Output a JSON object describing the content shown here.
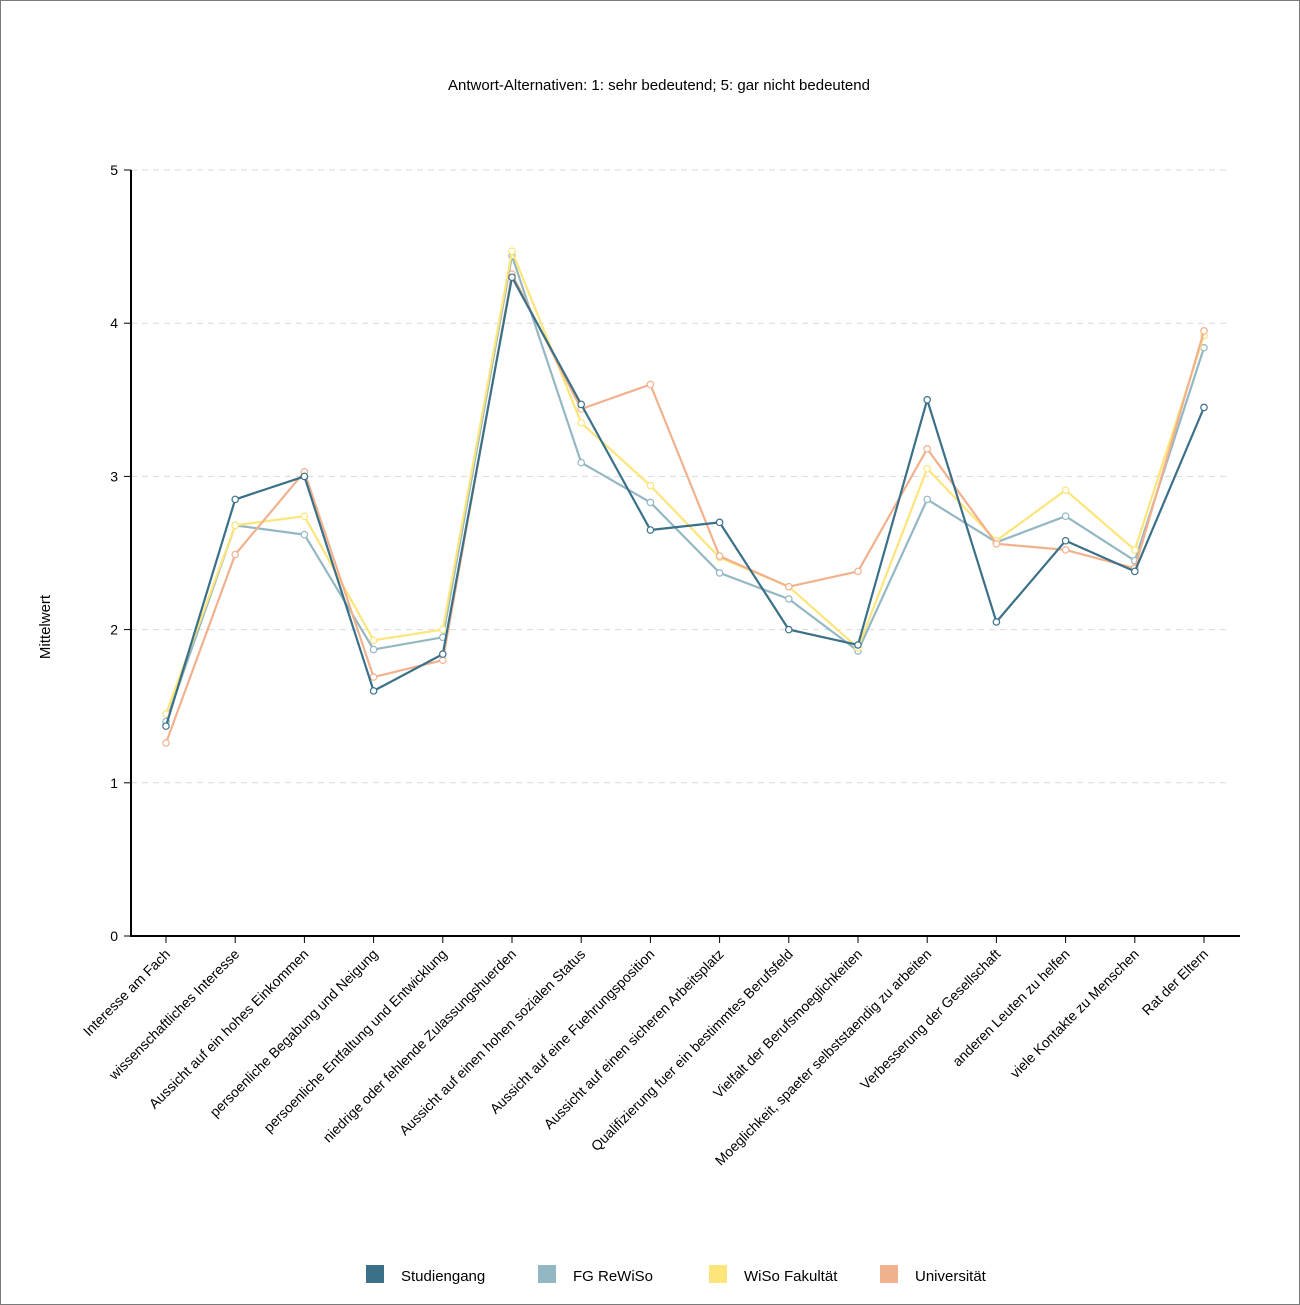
{
  "colors": {
    "Studiengang": "#3a7088",
    "FG ReWiSo": "#94b7c4",
    "WiSo Fakultät": "#fde57a",
    "Universität": "#f2b18d"
  },
  "chart_data": {
    "type": "line",
    "title": "Antwort-Alternativen: 1: sehr bedeutend; 5: gar nicht bedeutend",
    "xlabel": "",
    "ylabel": "Mittelwert",
    "ylim": [
      0,
      5
    ],
    "yticks": [
      0,
      1,
      2,
      3,
      4,
      5
    ],
    "grid": "horizontal dashed",
    "legend_position": "bottom",
    "categories": [
      "Interesse am Fach",
      "wissenschaftliches Interesse",
      "Aussicht auf ein hohes Einkommen",
      "persoenliche Begabung und Neigung",
      "persoenliche Entfaltung und Entwicklung",
      "niedrige oder fehlende Zulassungshuerden",
      "Aussicht auf einen hohen sozialen Status",
      "Aussicht auf eine Fuehrungsposition",
      "Aussicht auf einen sicheren Arbeitsplatz",
      "Qualifizierung fuer ein bestimmtes Berufsfeld",
      "Vielfalt der Berufsmoeglichkeiten",
      "Moeglichkeit, spaeter selbststaendig zu arbeiten",
      "Verbesserung der Gesellschaft",
      "anderen Leuten zu helfen",
      "viele Kontakte zu Menschen",
      "Rat der Eltern"
    ],
    "series": [
      {
        "name": "FG ReWiSo",
        "values": [
          1.4,
          2.68,
          2.62,
          1.87,
          1.95,
          4.44,
          3.09,
          2.83,
          2.37,
          2.2,
          1.86,
          2.85,
          2.57,
          2.74,
          2.45,
          3.84
        ]
      },
      {
        "name": "WiSo Fakultät",
        "values": [
          1.45,
          2.68,
          2.74,
          1.93,
          2.0,
          4.47,
          3.35,
          2.94,
          2.47,
          2.28,
          1.88,
          3.05,
          2.58,
          2.91,
          2.52,
          3.92
        ]
      },
      {
        "name": "Universität",
        "values": [
          1.26,
          2.49,
          3.03,
          1.69,
          1.8,
          4.32,
          3.44,
          3.6,
          2.48,
          2.28,
          2.38,
          3.18,
          2.56,
          2.52,
          2.4,
          3.95
        ]
      },
      {
        "name": "Studiengang",
        "values": [
          1.37,
          2.85,
          3.0,
          1.6,
          1.84,
          4.3,
          3.47,
          2.65,
          2.7,
          2.0,
          1.9,
          3.5,
          2.05,
          2.58,
          2.38,
          3.45
        ]
      }
    ],
    "legend": [
      "Studiengang",
      "FG ReWiSo",
      "WiSo Fakultät",
      "Universität"
    ]
  }
}
